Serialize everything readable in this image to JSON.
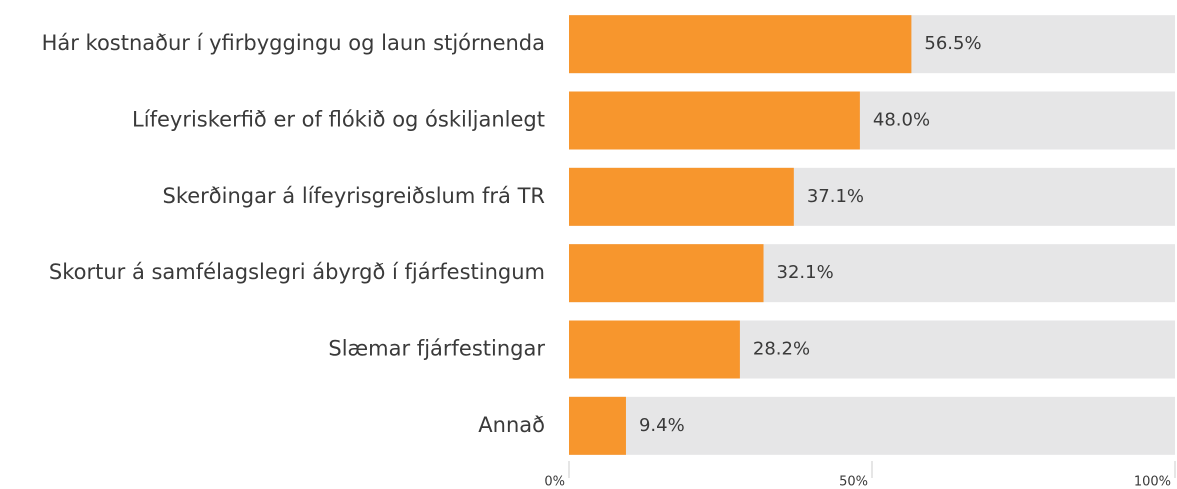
{
  "chart_data": {
    "type": "bar",
    "orientation": "horizontal",
    "categories": [
      "Hár kostnaður í yfirbyggingu og laun stjórnenda",
      "Lífeyriskerfið er of flókið og óskiljanlegt",
      "Skerðingar á lífeyrisgreiðslum frá TR",
      "Skortur á samfélagslegri ábyrgð í fjárfestingum",
      "Slæmar fjárfestingar",
      "Annað"
    ],
    "values": [
      56.5,
      48.0,
      37.1,
      32.1,
      28.2,
      9.4
    ],
    "value_labels": [
      "56.5%",
      "48.0%",
      "37.1%",
      "32.1%",
      "28.2%",
      "9.4%"
    ],
    "color": "#f7962d",
    "track_color": "#e6e6e7",
    "xlim": [
      0,
      100
    ],
    "xticks": [
      {
        "value": 0,
        "label": "0%"
      },
      {
        "value": 50,
        "label": "50%"
      },
      {
        "value": 100,
        "label": "100%"
      }
    ]
  }
}
